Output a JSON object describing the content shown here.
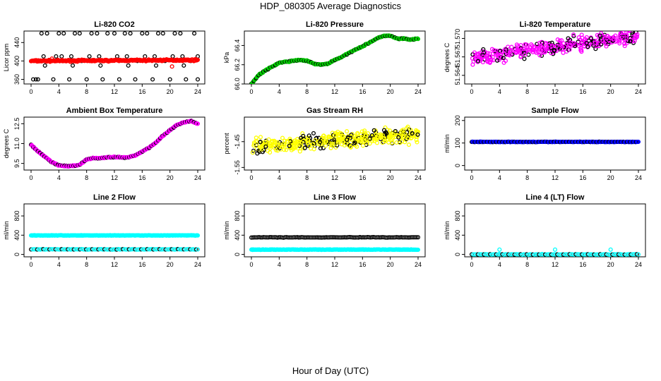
{
  "title": "HDP_080305  Average Diagnostics",
  "xlabel": "Hour of Day (UTC)",
  "x_ticks": [
    0,
    4,
    8,
    12,
    16,
    20,
    24
  ],
  "chart_data": [
    {
      "type": "scatter",
      "title": "Li-820 CO2",
      "ylabel": "Licor ppm",
      "xlim": [
        0,
        24
      ],
      "ylim": [
        350,
        465
      ],
      "yticks": [
        360,
        400,
        440
      ],
      "ytick_labels": [
        "360",
        "400",
        "440"
      ],
      "series": [
        {
          "name": "outliers",
          "color": "#000000",
          "x": [
            1.0,
            1.5,
            2.3,
            3.2,
            4.0,
            4.7,
            5.5,
            6.3,
            7.0,
            8.0,
            8.7,
            9.5,
            10.3,
            11.0,
            12.0,
            12.7,
            13.5,
            14.3,
            15.0,
            16.0,
            16.7,
            17.5,
            18.3,
            19.0,
            20.0,
            20.7,
            21.5,
            22.3,
            23.5,
            24.0,
            0.7,
            3.0,
            7.3,
            11.3,
            15.3,
            19.3,
            23.0,
            1.8,
            3.6,
            5.8,
            9.8,
            13.8,
            17.8,
            21.8,
            2.0,
            6.0,
            10.0,
            14.0,
            18.0,
            22.0,
            0.3,
            4.4,
            8.4,
            12.4,
            16.4,
            20.4,
            24.0
          ],
          "y": [
            360,
            460,
            460,
            360,
            460,
            460,
            360,
            460,
            460,
            360,
            460,
            460,
            360,
            460,
            460,
            360,
            460,
            460,
            360,
            460,
            460,
            360,
            460,
            460,
            360,
            460,
            460,
            360,
            460,
            360,
            360,
            400,
            400,
            400,
            400,
            400,
            400,
            410,
            410,
            410,
            410,
            410,
            410,
            410,
            390,
            390,
            390,
            390,
            390,
            390,
            360,
            410,
            410,
            410,
            410,
            410,
            410
          ]
        },
        {
          "name": "co2",
          "color": "#ff0000",
          "x_start": 0.0,
          "x_end": 24.0,
          "n": 300,
          "base": 400,
          "trend": 2,
          "noise": 1.5,
          "extra_x": [
            3.0,
            20.3
          ],
          "extra_y": [
            405,
            388
          ]
        }
      ]
    },
    {
      "type": "scatter",
      "title": "Li-820 Pressure",
      "ylabel": "kPa",
      "xlim": [
        0,
        24
      ],
      "ylim": [
        66.0,
        66.55
      ],
      "yticks": [
        66.0,
        66.2,
        66.4
      ],
      "ytick_labels": [
        "66.0",
        "66.2",
        "66.4"
      ],
      "series": [
        {
          "name": "pressure",
          "color": "#00cc00",
          "edge": "#000000",
          "mode": "knots",
          "knot_x": [
            0,
            1,
            2,
            3,
            4,
            5,
            6,
            7,
            8,
            9,
            10,
            11,
            12,
            13,
            14,
            15,
            16,
            17,
            18,
            19,
            20,
            21,
            22,
            23,
            24
          ],
          "knot_y": [
            66.0,
            66.09,
            66.14,
            66.18,
            66.22,
            66.23,
            66.24,
            66.25,
            66.24,
            66.21,
            66.2,
            66.21,
            66.25,
            66.28,
            66.32,
            66.36,
            66.39,
            66.43,
            66.47,
            66.5,
            66.5,
            66.47,
            66.47,
            66.46,
            66.47
          ],
          "n": 280
        }
      ]
    },
    {
      "type": "scatter",
      "title": "Li-820 Temperature",
      "ylabel": "degrees C",
      "xlim": [
        0,
        24
      ],
      "ylim": [
        51.5626,
        51.5712
      ],
      "yticks": [
        51.564,
        51.567,
        51.57
      ],
      "ytick_labels": [
        "51.564",
        "51.567",
        "51.570"
      ],
      "series": [
        {
          "name": "temperature",
          "color": "#ff00ff",
          "edge": "#000000",
          "mode": "noisy",
          "start": 51.5668,
          "end": 51.5705,
          "noise": 0.0022,
          "n": 420
        }
      ]
    },
    {
      "type": "scatter",
      "title": "Ambient Box Temperature",
      "ylabel": "degrees C",
      "xlim": [
        0,
        24
      ],
      "ylim": [
        9.0,
        13.0
      ],
      "yticks": [
        9.5,
        11.0,
        12.5
      ],
      "ytick_labels": [
        "9.5",
        "11.0",
        "12.5"
      ],
      "series": [
        {
          "name": "box_temp",
          "color": "#ff00ff",
          "edge": "#000000",
          "mode": "knots",
          "knot_x": [
            0,
            1,
            2,
            3,
            4,
            5,
            6,
            7,
            8,
            9,
            10,
            11,
            12,
            13,
            14,
            15,
            16,
            17,
            18,
            19,
            20,
            21,
            22,
            23,
            24
          ],
          "knot_y": [
            10.9,
            10.4,
            10.0,
            9.6,
            9.35,
            9.3,
            9.3,
            9.4,
            9.8,
            9.9,
            9.9,
            9.95,
            10.0,
            9.95,
            9.95,
            10.1,
            10.4,
            10.7,
            11.1,
            11.6,
            12.0,
            12.4,
            12.6,
            12.7,
            12.5
          ],
          "n": 300
        }
      ]
    },
    {
      "type": "scatter",
      "title": "Gas Stream RH",
      "ylabel": "percent",
      "xlim": [
        0,
        24
      ],
      "ylim": [
        -1.56,
        -1.355
      ],
      "yticks": [
        -1.55,
        -1.45
      ],
      "ytick_labels": [
        "-1.55",
        "-1.45"
      ],
      "series": [
        {
          "name": "rh",
          "color": "#ffff00",
          "edge": "#000000",
          "mode": "noisy",
          "start": -1.47,
          "end": -1.42,
          "noise": 0.055,
          "n": 450
        }
      ]
    },
    {
      "type": "scatter",
      "title": "Sample Flow",
      "ylabel": "ml/min",
      "xlim": [
        0,
        24
      ],
      "ylim": [
        -20,
        215
      ],
      "yticks": [
        0,
        100,
        200
      ],
      "ytick_labels": [
        "0",
        "100",
        "200"
      ],
      "series": [
        {
          "name": "sample_flow",
          "color": "#0000ff",
          "edge": "#000000",
          "mode": "flat",
          "value": 105,
          "n": 220
        }
      ]
    },
    {
      "type": "scatter",
      "title": "Line 2 Flow",
      "ylabel": "ml/min",
      "xlim": [
        0,
        24
      ],
      "ylim": [
        -50,
        1050
      ],
      "yticks": [
        0,
        400,
        800
      ],
      "ytick_labels": [
        "0",
        "400",
        "800"
      ],
      "series": [
        {
          "name": "line2_high",
          "color": "#00ffff",
          "mode": "flat",
          "value": 395,
          "n": 260
        },
        {
          "name": "line2_low",
          "color": "#00ffff",
          "edge": "#000000",
          "mode": "flat",
          "value": 105,
          "n": 110
        }
      ]
    },
    {
      "type": "scatter",
      "title": "Line 3 Flow",
      "ylabel": "ml/min",
      "xlim": [
        0,
        24
      ],
      "ylim": [
        -50,
        1050
      ],
      "yticks": [
        0,
        400,
        800
      ],
      "ytick_labels": [
        "0",
        "400",
        "800"
      ],
      "series": [
        {
          "name": "line3_high",
          "color": "#000000",
          "edge": "#000000",
          "mode": "flat",
          "value": 355,
          "n": 110
        },
        {
          "name": "line3_low",
          "color": "#00ffff",
          "mode": "flat",
          "value": 100,
          "n": 260
        }
      ]
    },
    {
      "type": "scatter",
      "title": "Line 4 (LT) Flow",
      "ylabel": "ml/min",
      "xlim": [
        0,
        24
      ],
      "ylim": [
        -50,
        1050
      ],
      "yticks": [
        0,
        400,
        800
      ],
      "ytick_labels": [
        "0",
        "400",
        "800"
      ],
      "series": [
        {
          "name": "line4",
          "color": "#00ffff",
          "edge": "#000000",
          "mode": "flat",
          "value": 0,
          "n": 110
        },
        {
          "name": "line4_spikes",
          "color": "#00ffff",
          "x": [
            4.0,
            12.0,
            20.0
          ],
          "y": [
            100,
            100,
            100
          ]
        }
      ]
    }
  ]
}
